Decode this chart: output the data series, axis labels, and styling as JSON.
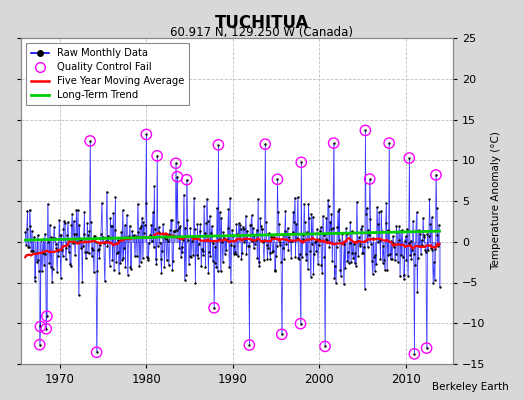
{
  "title": "TUCHITUA",
  "subtitle": "60.917 N, 129.250 W (Canada)",
  "ylabel": "Temperature Anomaly (°C)",
  "watermark": "Berkeley Earth",
  "xlim": [
    1965.5,
    2015.5
  ],
  "ylim": [
    -15,
    25
  ],
  "yticks": [
    -15,
    -10,
    -5,
    0,
    5,
    10,
    15,
    20,
    25
  ],
  "xticks": [
    1970,
    1980,
    1990,
    2000,
    2010
  ],
  "bg_color": "#d8d8d8",
  "plot_bg_color": "#ffffff",
  "raw_color": "#0000ff",
  "qc_color": "#ff00ff",
  "moving_avg_color": "#ff0000",
  "trend_color": "#00cc00",
  "seed": 42,
  "n_monthly": 576,
  "start_year": 1966.0,
  "qc_threshold": 7.0,
  "raw_std": 2.5
}
